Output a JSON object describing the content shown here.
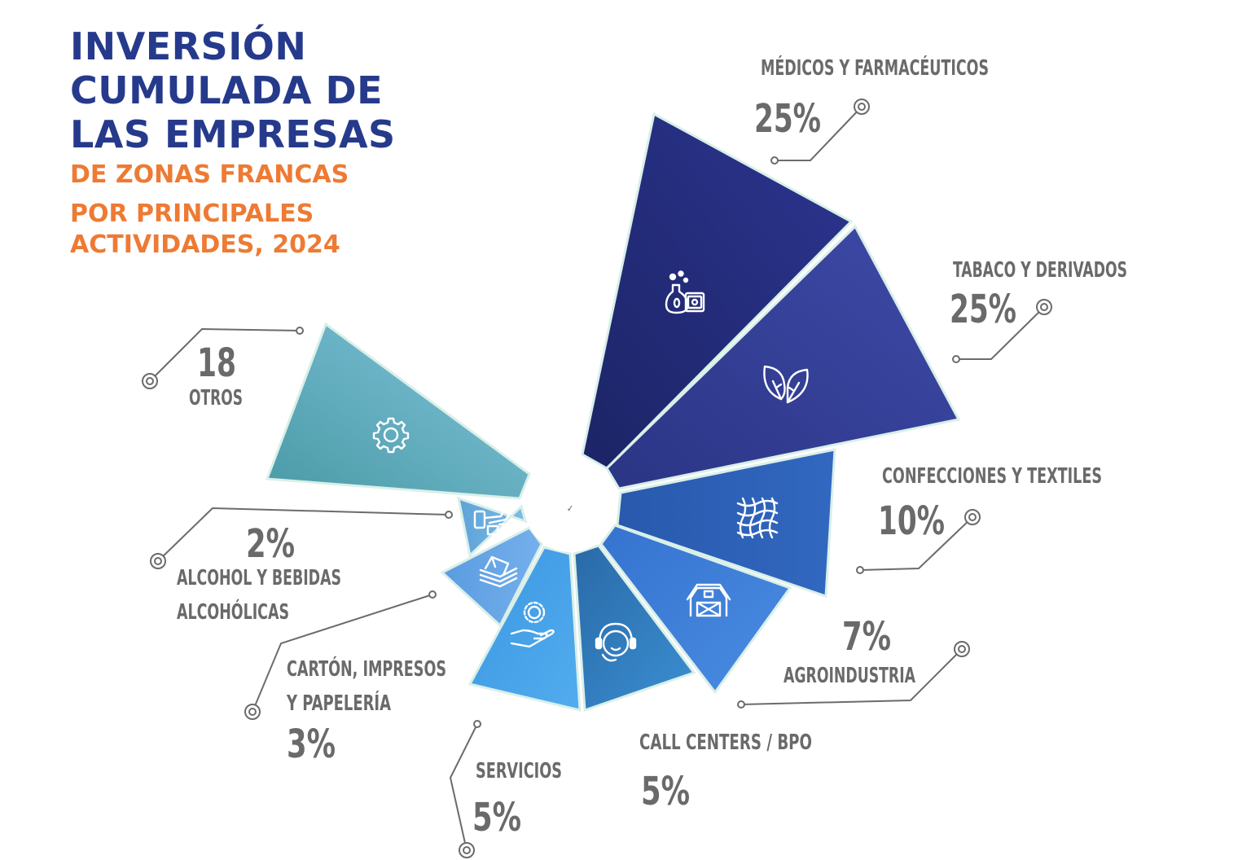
{
  "title": {
    "line1": "INVERSIÓN",
    "line2": "CUMULADA DE",
    "line3": "LAS EMPRESAS",
    "sub1": "DE ZONAS FRANCAS",
    "sub2": "POR PRINCIPALES",
    "sub3": "ACTIVIDADES, 2024"
  },
  "colors": {
    "title": "#263a8c",
    "subtitle": "#ee7a33",
    "labels": "#6a6a6a"
  },
  "chart_data": {
    "type": "pie",
    "subtype": "radial-segment",
    "slices": [
      {
        "key": "medicos",
        "name": "MÉDICOS Y FARMACÉUTICOS",
        "value_label": "25%",
        "value": 25,
        "icon": "medicine-flask-icon",
        "color": "#2a3288"
      },
      {
        "key": "tabaco",
        "name": "TABACO Y DERIVADOS",
        "value_label": "25%",
        "value": 25,
        "icon": "leaves-icon",
        "color": "#3c49a6"
      },
      {
        "key": "confecciones",
        "name": "CONFECCIONES Y TEXTILES",
        "value_label": "10%",
        "value": 10,
        "icon": "weave-fabric-icon",
        "color": "#2f62b8"
      },
      {
        "key": "agroindustria",
        "name": "AGROINDUSTRIA",
        "value_label": "7%",
        "value": 7,
        "icon": "barn-icon",
        "color": "#3f82da"
      },
      {
        "key": "callcenters",
        "name": "CALL CENTERS / BPO",
        "value_label": "5%",
        "value": 5,
        "icon": "headset-agent-icon",
        "color": "#2f7fc3"
      },
      {
        "key": "servicios",
        "name": "SERVICIOS",
        "value_label": "5%",
        "value": 5,
        "icon": "gear-hand-icon",
        "color": "#46a2e6"
      },
      {
        "key": "carton",
        "name_lines": [
          "CARTÓN, IMPRESOS",
          "Y PAPELERÍA"
        ],
        "value_label": "3%",
        "value": 3,
        "icon": "paper-stack-icon",
        "color": "#5d9fe6"
      },
      {
        "key": "alcohol",
        "name_lines": [
          "ALCOHOL Y BEBIDAS",
          "ALCOHÓLICAS"
        ],
        "value_label": "2%",
        "value": 2,
        "icon": "bottles-icon",
        "color": "#6aaee0"
      },
      {
        "key": "otros",
        "name": "OTROS",
        "value_label": "18",
        "value": 18,
        "icon": "gear-icon",
        "color": "#6fb6d2"
      }
    ]
  }
}
